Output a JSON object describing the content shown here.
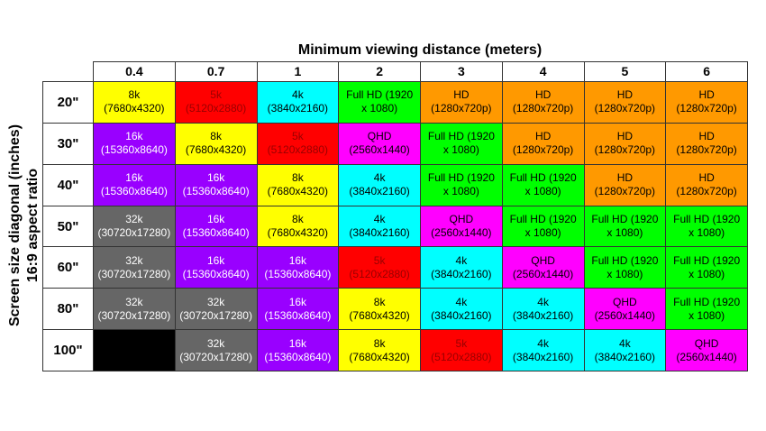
{
  "chart_data": {
    "type": "table",
    "title": "Minimum viewing distance (meters)",
    "ylabel": [
      "Screen size diagonal (inches)",
      "16:9 aspect ratio"
    ],
    "columns": [
      "0.4",
      "0.7",
      "1",
      "2",
      "3",
      "4",
      "5",
      "6"
    ],
    "rows": [
      "20\"",
      "30\"",
      "40\"",
      "50\"",
      "60\"",
      "80\"",
      "100\""
    ],
    "categories": {
      "32k": {
        "label": "32k",
        "res": "(30720x17280)",
        "color": "#666666",
        "text": "#ffffff"
      },
      "16k": {
        "label": "16k",
        "res": "(15360x8640)",
        "color": "#9900ff",
        "text": "#ffffff"
      },
      "8k": {
        "label": "8k",
        "res": "(7680x4320)",
        "color": "#ffff00",
        "text": "#000000"
      },
      "5k": {
        "label": "5k",
        "res": "(5120x2880)",
        "color": "#ff0000",
        "text": "#990000"
      },
      "4k": {
        "label": "4k",
        "res": "(3840x2160)",
        "color": "#00ffff",
        "text": "#000000"
      },
      "QHD": {
        "label": "QHD",
        "res": "(2560x1440)",
        "color": "#ff00ff",
        "text": "#000000"
      },
      "FHD": {
        "label": "Full HD (1920",
        "res": "x 1080)",
        "color": "#00ff00",
        "text": "#000000"
      },
      "HD": {
        "label": "HD",
        "res": "(1280x720p)",
        "color": "#ff9900",
        "text": "#000000"
      },
      "none": {
        "label": "",
        "res": "",
        "color": "#000000",
        "text": "#ffffff"
      }
    },
    "cells": [
      [
        "8k",
        "5k",
        "4k",
        "FHD",
        "HD",
        "HD",
        "HD",
        "HD"
      ],
      [
        "16k",
        "8k",
        "5k",
        "QHD",
        "FHD",
        "HD",
        "HD",
        "HD"
      ],
      [
        "16k",
        "16k",
        "8k",
        "4k",
        "FHD",
        "FHD",
        "HD",
        "HD"
      ],
      [
        "32k",
        "16k",
        "8k",
        "4k",
        "QHD",
        "FHD",
        "FHD",
        "FHD"
      ],
      [
        "32k",
        "16k",
        "16k",
        "5k",
        "4k",
        "QHD",
        "FHD",
        "FHD"
      ],
      [
        "32k",
        "32k",
        "16k",
        "8k",
        "4k",
        "4k",
        "QHD",
        "FHD"
      ],
      [
        "none",
        "32k",
        "16k",
        "8k",
        "5k",
        "4k",
        "4k",
        "QHD"
      ]
    ]
  }
}
